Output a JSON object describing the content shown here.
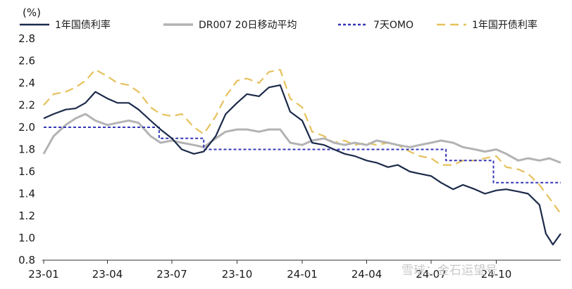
{
  "chart_data": {
    "type": "line",
    "ylabel": "(%)",
    "ylim": [
      0.8,
      2.8
    ],
    "yticks": [
      "0.8",
      "1.0",
      "1.2",
      "1.4",
      "1.6",
      "1.8",
      "2.0",
      "2.2",
      "2.4",
      "2.6",
      "2.8"
    ],
    "xlim": [
      "2023-01-01",
      "2024-12-31"
    ],
    "xticks": [
      {
        "date": "2023-01-01",
        "label": "23-01"
      },
      {
        "date": "2023-04-01",
        "label": "23-04"
      },
      {
        "date": "2023-07-01",
        "label": "23-07"
      },
      {
        "date": "2023-10-01",
        "label": "23-10"
      },
      {
        "date": "2024-01-01",
        "label": "24-01"
      },
      {
        "date": "2024-04-01",
        "label": "24-04"
      },
      {
        "date": "2024-07-01",
        "label": "24-07"
      },
      {
        "date": "2024-10-01",
        "label": "24-10"
      }
    ],
    "grid": false,
    "legend_position": "top",
    "series": [
      {
        "name": "1年国债利率",
        "color": "#1b2a4a",
        "style": "solid",
        "points": [
          [
            "2023-01-01",
            2.08
          ],
          [
            "2023-01-15",
            2.12
          ],
          [
            "2023-02-01",
            2.16
          ],
          [
            "2023-02-15",
            2.17
          ],
          [
            "2023-03-01",
            2.22
          ],
          [
            "2023-03-15",
            2.32
          ],
          [
            "2023-04-01",
            2.26
          ],
          [
            "2023-04-15",
            2.22
          ],
          [
            "2023-05-01",
            2.22
          ],
          [
            "2023-05-15",
            2.16
          ],
          [
            "2023-06-01",
            2.06
          ],
          [
            "2023-06-15",
            1.98
          ],
          [
            "2023-07-01",
            1.9
          ],
          [
            "2023-07-15",
            1.8
          ],
          [
            "2023-08-01",
            1.76
          ],
          [
            "2023-08-15",
            1.78
          ],
          [
            "2023-09-01",
            1.92
          ],
          [
            "2023-09-15",
            2.12
          ],
          [
            "2023-10-01",
            2.22
          ],
          [
            "2023-10-15",
            2.3
          ],
          [
            "2023-11-01",
            2.28
          ],
          [
            "2023-11-15",
            2.36
          ],
          [
            "2023-12-01",
            2.38
          ],
          [
            "2023-12-15",
            2.14
          ],
          [
            "2024-01-01",
            2.06
          ],
          [
            "2024-01-15",
            1.86
          ],
          [
            "2024-02-01",
            1.84
          ],
          [
            "2024-02-15",
            1.8
          ],
          [
            "2024-03-01",
            1.76
          ],
          [
            "2024-03-15",
            1.74
          ],
          [
            "2024-04-01",
            1.7
          ],
          [
            "2024-04-15",
            1.68
          ],
          [
            "2024-05-01",
            1.64
          ],
          [
            "2024-05-15",
            1.66
          ],
          [
            "2024-06-01",
            1.6
          ],
          [
            "2024-06-15",
            1.58
          ],
          [
            "2024-07-01",
            1.56
          ],
          [
            "2024-07-15",
            1.5
          ],
          [
            "2024-08-01",
            1.44
          ],
          [
            "2024-08-15",
            1.48
          ],
          [
            "2024-09-01",
            1.44
          ],
          [
            "2024-09-15",
            1.4
          ],
          [
            "2024-10-01",
            1.43
          ],
          [
            "2024-10-15",
            1.44
          ],
          [
            "2024-11-01",
            1.42
          ],
          [
            "2024-11-15",
            1.4
          ],
          [
            "2024-12-01",
            1.3
          ],
          [
            "2024-12-10",
            1.04
          ],
          [
            "2024-12-20",
            0.94
          ],
          [
            "2024-12-31",
            1.04
          ]
        ]
      },
      {
        "name": "DR007 20日移动平均",
        "color": "#b3b3b3",
        "style": "solid",
        "points": [
          [
            "2023-01-01",
            1.76
          ],
          [
            "2023-01-15",
            1.92
          ],
          [
            "2023-02-01",
            2.02
          ],
          [
            "2023-02-15",
            2.08
          ],
          [
            "2023-03-01",
            2.12
          ],
          [
            "2023-03-15",
            2.06
          ],
          [
            "2023-04-01",
            2.02
          ],
          [
            "2023-04-15",
            2.04
          ],
          [
            "2023-05-01",
            2.06
          ],
          [
            "2023-05-15",
            2.04
          ],
          [
            "2023-06-01",
            1.92
          ],
          [
            "2023-06-15",
            1.86
          ],
          [
            "2023-07-01",
            1.88
          ],
          [
            "2023-07-15",
            1.86
          ],
          [
            "2023-08-01",
            1.84
          ],
          [
            "2023-08-15",
            1.82
          ],
          [
            "2023-09-01",
            1.9
          ],
          [
            "2023-09-15",
            1.96
          ],
          [
            "2023-10-01",
            1.98
          ],
          [
            "2023-10-15",
            1.98
          ],
          [
            "2023-11-01",
            1.96
          ],
          [
            "2023-11-15",
            1.98
          ],
          [
            "2023-12-01",
            1.98
          ],
          [
            "2023-12-15",
            1.86
          ],
          [
            "2024-01-01",
            1.84
          ],
          [
            "2024-01-15",
            1.88
          ],
          [
            "2024-02-01",
            1.9
          ],
          [
            "2024-02-15",
            1.86
          ],
          [
            "2024-03-01",
            1.84
          ],
          [
            "2024-03-15",
            1.86
          ],
          [
            "2024-04-01",
            1.84
          ],
          [
            "2024-04-15",
            1.88
          ],
          [
            "2024-05-01",
            1.86
          ],
          [
            "2024-05-15",
            1.84
          ],
          [
            "2024-06-01",
            1.82
          ],
          [
            "2024-06-15",
            1.84
          ],
          [
            "2024-07-01",
            1.86
          ],
          [
            "2024-07-15",
            1.88
          ],
          [
            "2024-08-01",
            1.86
          ],
          [
            "2024-08-15",
            1.82
          ],
          [
            "2024-09-01",
            1.8
          ],
          [
            "2024-09-15",
            1.78
          ],
          [
            "2024-10-01",
            1.8
          ],
          [
            "2024-10-15",
            1.76
          ],
          [
            "2024-11-01",
            1.7
          ],
          [
            "2024-11-15",
            1.72
          ],
          [
            "2024-12-01",
            1.7
          ],
          [
            "2024-12-15",
            1.72
          ],
          [
            "2024-12-31",
            1.68
          ]
        ]
      },
      {
        "name": "7天OMO",
        "color": "#3437b5",
        "style": "dotted",
        "points": [
          [
            "2023-01-01",
            2.0
          ],
          [
            "2023-06-13",
            2.0
          ],
          [
            "2023-06-13",
            1.9
          ],
          [
            "2023-08-15",
            1.9
          ],
          [
            "2023-08-15",
            1.8
          ],
          [
            "2024-07-22",
            1.8
          ],
          [
            "2024-07-22",
            1.7
          ],
          [
            "2024-09-27",
            1.7
          ],
          [
            "2024-09-27",
            1.5
          ],
          [
            "2024-12-31",
            1.5
          ]
        ]
      },
      {
        "name": "1年国开债利率",
        "color": "#e6c15c",
        "style": "dashed",
        "points": [
          [
            "2023-01-01",
            2.2
          ],
          [
            "2023-01-15",
            2.3
          ],
          [
            "2023-02-01",
            2.32
          ],
          [
            "2023-02-15",
            2.36
          ],
          [
            "2023-03-01",
            2.42
          ],
          [
            "2023-03-15",
            2.52
          ],
          [
            "2023-04-01",
            2.46
          ],
          [
            "2023-04-15",
            2.4
          ],
          [
            "2023-05-01",
            2.38
          ],
          [
            "2023-05-15",
            2.32
          ],
          [
            "2023-06-01",
            2.18
          ],
          [
            "2023-06-15",
            2.12
          ],
          [
            "2023-07-01",
            2.1
          ],
          [
            "2023-07-15",
            2.12
          ],
          [
            "2023-08-01",
            2.0
          ],
          [
            "2023-08-15",
            1.94
          ],
          [
            "2023-09-01",
            2.1
          ],
          [
            "2023-09-15",
            2.28
          ],
          [
            "2023-10-01",
            2.42
          ],
          [
            "2023-10-15",
            2.44
          ],
          [
            "2023-11-01",
            2.4
          ],
          [
            "2023-11-15",
            2.5
          ],
          [
            "2023-12-01",
            2.52
          ],
          [
            "2023-12-15",
            2.26
          ],
          [
            "2024-01-01",
            2.18
          ],
          [
            "2024-01-15",
            1.96
          ],
          [
            "2024-02-01",
            1.92
          ],
          [
            "2024-02-15",
            1.86
          ],
          [
            "2024-03-01",
            1.88
          ],
          [
            "2024-03-15",
            1.84
          ],
          [
            "2024-04-01",
            1.86
          ],
          [
            "2024-04-15",
            1.84
          ],
          [
            "2024-05-01",
            1.86
          ],
          [
            "2024-05-15",
            1.84
          ],
          [
            "2024-06-01",
            1.78
          ],
          [
            "2024-06-15",
            1.74
          ],
          [
            "2024-07-01",
            1.72
          ],
          [
            "2024-07-15",
            1.66
          ],
          [
            "2024-08-01",
            1.66
          ],
          [
            "2024-08-15",
            1.7
          ],
          [
            "2024-09-01",
            1.7
          ],
          [
            "2024-09-15",
            1.72
          ],
          [
            "2024-10-01",
            1.74
          ],
          [
            "2024-10-15",
            1.64
          ],
          [
            "2024-11-01",
            1.62
          ],
          [
            "2024-11-15",
            1.58
          ],
          [
            "2024-12-01",
            1.48
          ],
          [
            "2024-12-15",
            1.36
          ],
          [
            "2024-12-31",
            1.22
          ]
        ]
      }
    ]
  },
  "watermark": "雪球：金石运望号"
}
